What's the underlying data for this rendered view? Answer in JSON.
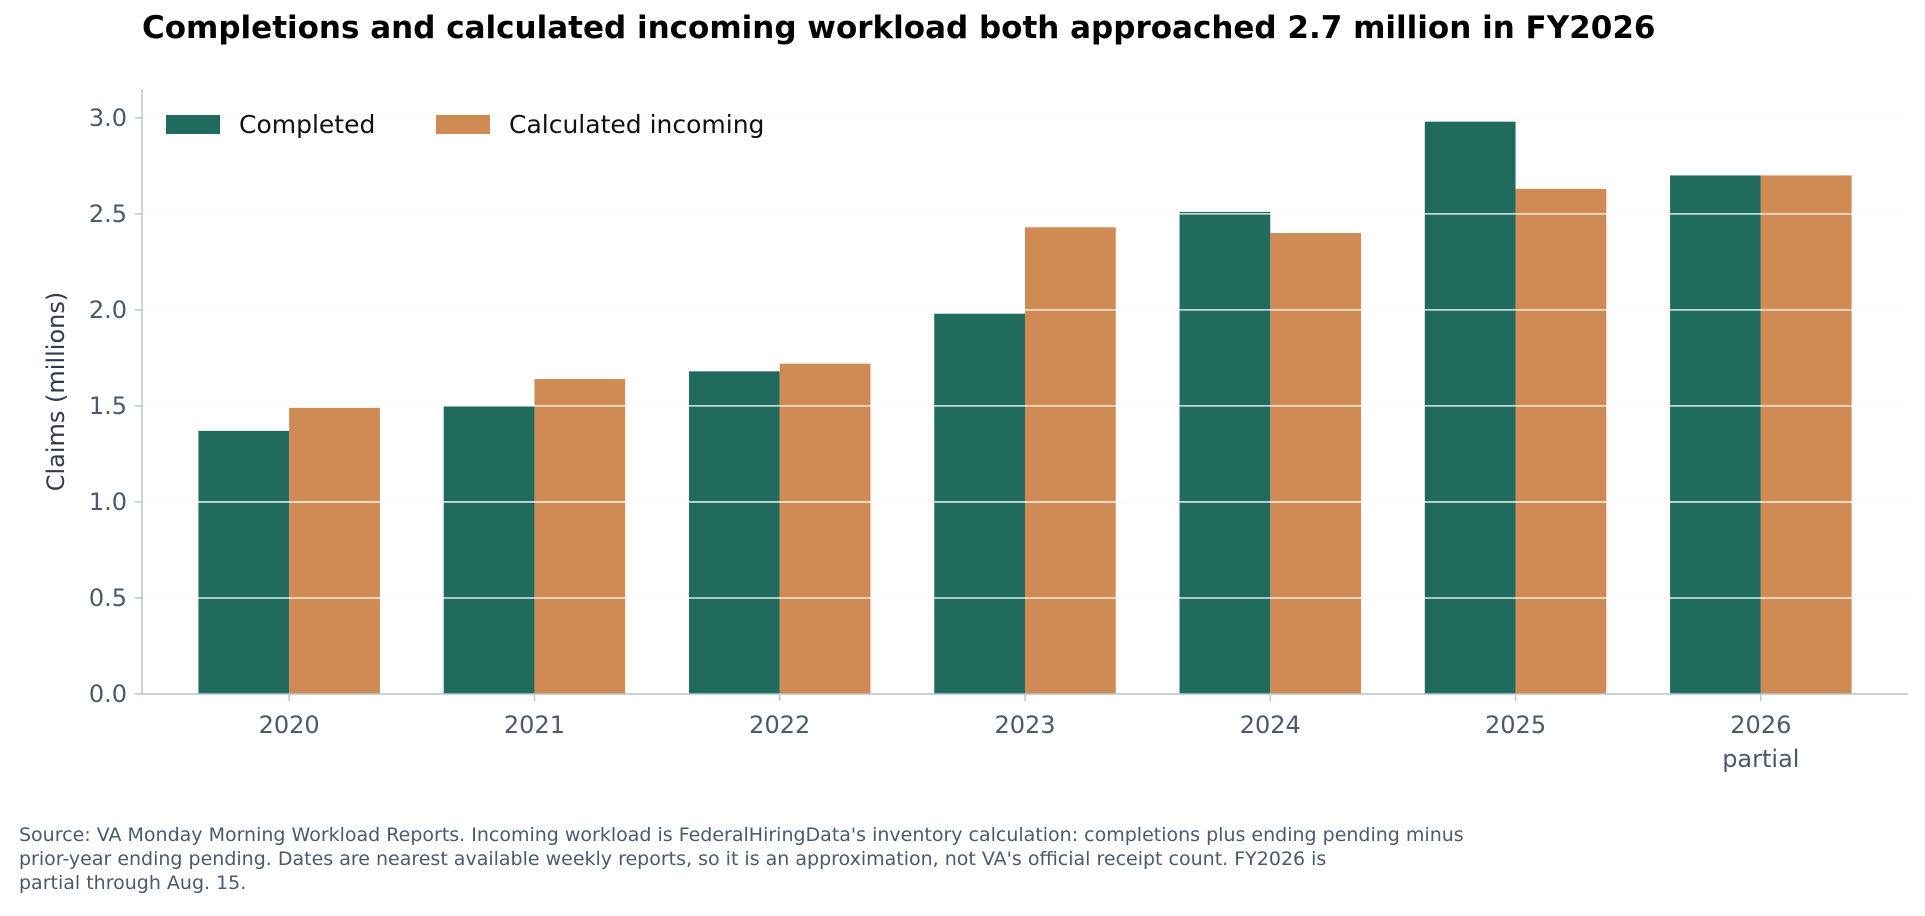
{
  "chart_data": {
    "type": "bar",
    "title": "Completions and calculated incoming workload both approached 2.7 million in FY2026",
    "ylabel": "Claims (millions)",
    "xlabel": "",
    "categories": [
      "2020",
      "2021",
      "2022",
      "2023",
      "2024",
      "2025",
      "2026\npartial"
    ],
    "series": [
      {
        "name": "Completed",
        "color": "#206b5e",
        "values": [
          1.37,
          1.5,
          1.68,
          1.98,
          2.51,
          2.98,
          2.7
        ]
      },
      {
        "name": "Calculated incoming",
        "color": "#d08a53",
        "values": [
          1.49,
          1.64,
          1.72,
          2.43,
          2.4,
          2.63,
          2.7
        ]
      }
    ],
    "ylim": [
      0,
      3.15
    ],
    "yticks": [
      "0.0",
      "0.5",
      "1.0",
      "1.5",
      "2.0",
      "2.5",
      "3.0"
    ],
    "grid": true,
    "legend_position": "top-left"
  },
  "footnote": {
    "line1": "Source: VA Monday Morning Workload Reports. Incoming workload is FederalHiringData's inventory calculation: completions plus ending pending minus",
    "line2": "prior-year ending pending. Dates are nearest available weekly reports, so it is an approximation, not VA's official receipt count. FY2026 is",
    "line3": "partial through Aug. 15."
  }
}
